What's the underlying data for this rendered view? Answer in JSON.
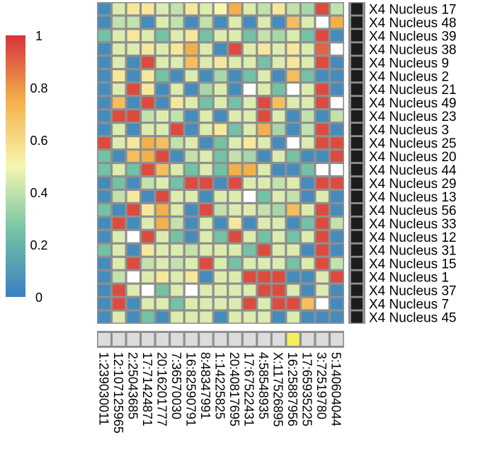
{
  "chart_data": {
    "type": "heatmap",
    "title": "",
    "colorbar": {
      "min": 0,
      "max": 1,
      "ticks": [
        {
          "value": 1,
          "label": "1"
        },
        {
          "value": 0.8,
          "label": "0.8"
        },
        {
          "value": 0.6,
          "label": "0.6"
        },
        {
          "value": 0.4,
          "label": "0.4"
        },
        {
          "value": 0.2,
          "label": "0.2"
        },
        {
          "value": 0,
          "label": "0"
        }
      ],
      "colors": [
        "#3a7fc2",
        "#73c2a5",
        "#f6f6b0",
        "#f3b04a",
        "#d7323c"
      ]
    },
    "rows": [
      "X4 Nucleus 17",
      "X4 Nucleus 48",
      "X4 Nucleus 39",
      "X4 Nucleus 38",
      "X4 Nucleus 9",
      "X4 Nucleus 2",
      "X4 Nucleus 21",
      "X4 Nucleus 49",
      "X4 Nucleus 23",
      "X4 Nucleus 3",
      "X4 Nucleus 25",
      "X4 Nucleus 20",
      "X4 Nucleus 44",
      "X4 Nucleus 29",
      "X4 Nucleus 13",
      "X4 Nucleus 56",
      "X4 Nucleus 33",
      "X4 Nucleus 12",
      "X4 Nucleus 31",
      "X4 Nucleus 15",
      "X4 Nucleus 1",
      "X4 Nucleus 37",
      "X4 Nucleus 7",
      "X4 Nucleus 45"
    ],
    "columns": [
      "1:239030011",
      "12:107125965",
      "2:25043685",
      "17:71424871",
      "20:16201777",
      "7:36570030",
      "16:82590791",
      "8:48347991",
      "1:14225825",
      "20:40817695",
      "17:67522431",
      "4:58548935",
      "X:117526895",
      "16:25887956",
      "17:65935225",
      "3:72519780",
      "5:140604044"
    ],
    "values": [
      [
        0.05,
        0.45,
        0.55,
        0.55,
        0.45,
        0.4,
        0.55,
        0.45,
        0.5,
        0.75,
        0.45,
        0.4,
        0.55,
        0.4,
        0.35,
        0.95,
        0.4
      ],
      [
        0.05,
        0.4,
        0.4,
        0.05,
        0.45,
        0.4,
        0.05,
        0.4,
        0.05,
        0.45,
        0.05,
        0.45,
        0.05,
        0.7,
        0.45,
        1.01,
        0.75
      ],
      [
        0.25,
        0.45,
        0.55,
        0.45,
        0.25,
        0.45,
        0.55,
        0.25,
        0.45,
        0.45,
        0.25,
        0.4,
        0.35,
        0.45,
        0.25,
        0.95,
        0.05
      ],
      [
        0.05,
        0.45,
        0.45,
        0.55,
        0.45,
        0.55,
        0.75,
        0.45,
        0.05,
        0.95,
        0.45,
        0.55,
        0.45,
        0.55,
        0.45,
        0.9,
        1.01
      ],
      [
        0.05,
        0.45,
        0.05,
        0.95,
        0.45,
        0.45,
        0.7,
        0.45,
        0.55,
        0.45,
        0.45,
        0.25,
        0.45,
        0.55,
        0.45,
        0.95,
        0.05
      ],
      [
        0.05,
        0.55,
        0.05,
        0.55,
        0.25,
        0.05,
        0.45,
        0.05,
        0.35,
        0.05,
        0.25,
        0.45,
        0.05,
        0.7,
        0.25,
        0.05,
        0.05
      ],
      [
        0.05,
        0.45,
        0.95,
        0.55,
        0.05,
        0.45,
        0.05,
        0.35,
        0.45,
        0.05,
        1.01,
        0.45,
        0.25,
        1.01,
        0.45,
        0.95,
        0.05
      ],
      [
        0.05,
        0.7,
        0.05,
        0.95,
        0.05,
        0.55,
        0.45,
        0.25,
        0.45,
        0.25,
        0.45,
        0.95,
        0.7,
        0.45,
        0.45,
        0.95,
        1.01
      ],
      [
        0.05,
        0.95,
        0.95,
        0.4,
        0.45,
        0.4,
        0.05,
        0.45,
        0.05,
        0.45,
        0.45,
        0.95,
        0.45,
        0.05,
        0.4,
        0.05,
        0.4
      ],
      [
        0.05,
        0.45,
        0.05,
        0.45,
        0.45,
        0.95,
        0.05,
        0.45,
        0.55,
        0.25,
        0.45,
        0.75,
        0.35,
        0.05,
        0.4,
        0.95,
        0.05
      ],
      [
        0.95,
        0.45,
        0.55,
        0.75,
        0.7,
        0.4,
        0.45,
        0.05,
        0.25,
        0.45,
        0.55,
        0.45,
        0.05,
        1.01,
        0.45,
        0.95,
        0.95
      ],
      [
        0.25,
        0.05,
        0.7,
        0.75,
        0.95,
        0.05,
        0.4,
        0.45,
        0.25,
        0.4,
        0.35,
        0.05,
        0.45,
        0.25,
        0.05,
        0.05,
        0.95
      ],
      [
        0.25,
        0.45,
        0.25,
        0.95,
        0.7,
        0.45,
        0.25,
        0.45,
        0.25,
        0.75,
        0.75,
        0.45,
        0.05,
        0.05,
        0.25,
        1.01,
        1.01
      ],
      [
        0.05,
        0.25,
        0.05,
        0.4,
        0.45,
        0.25,
        0.95,
        0.95,
        0.05,
        0.95,
        0.45,
        0.45,
        0.4,
        0.45,
        0.05,
        0.95,
        0.95
      ],
      [
        0.05,
        0.4,
        0.55,
        0.05,
        0.95,
        0.45,
        0.45,
        0.05,
        0.45,
        0.45,
        1.01,
        0.25,
        0.45,
        0.4,
        0.05,
        0.45,
        0.05
      ],
      [
        0.25,
        0.05,
        0.95,
        0.55,
        0.75,
        0.45,
        0.05,
        0.95,
        0.4,
        0.45,
        0.45,
        0.4,
        0.35,
        0.7,
        0.45,
        0.95,
        0.05
      ],
      [
        0.05,
        0.95,
        0.05,
        0.45,
        0.75,
        0.4,
        0.05,
        0.45,
        0.05,
        0.55,
        0.05,
        0.45,
        0.45,
        0.05,
        0.25,
        0.95,
        0.4
      ],
      [
        0.05,
        0.45,
        1.01,
        0.95,
        0.45,
        0.25,
        0.05,
        0.45,
        0.25,
        0.95,
        0.45,
        0.25,
        0.45,
        0.25,
        0.45,
        0.95,
        0.05
      ],
      [
        0.25,
        0.45,
        0.05,
        0.55,
        0.45,
        0.45,
        0.4,
        0.45,
        0.45,
        0.45,
        0.25,
        0.95,
        0.45,
        0.45,
        0.05,
        0.95,
        0.05
      ],
      [
        0.05,
        0.45,
        0.95,
        0.4,
        0.45,
        0.4,
        0.45,
        0.95,
        0.45,
        0.25,
        0.45,
        0.45,
        0.45,
        0.25,
        0.45,
        0.95,
        0.4
      ],
      [
        0.05,
        0.4,
        1.01,
        0.45,
        0.55,
        0.45,
        0.55,
        0.05,
        0.45,
        0.45,
        0.95,
        0.95,
        0.95,
        0.05,
        0.05,
        0.45,
        0.95
      ],
      [
        0.05,
        0.95,
        0.45,
        1.01,
        0.25,
        0.45,
        1.01,
        0.45,
        0.45,
        0.45,
        0.45,
        0.95,
        0.95,
        0.45,
        0.05,
        0.45,
        0.05
      ],
      [
        0.05,
        0.95,
        0.05,
        0.45,
        0.45,
        0.25,
        0.45,
        0.45,
        0.45,
        0.45,
        0.95,
        0.45,
        0.95,
        0.95,
        0.7,
        1.01,
        0.05
      ],
      [
        0.05,
        0.45,
        0.05,
        0.25,
        0.05,
        0.45,
        0.45,
        0.45,
        0.05,
        0.45,
        0.45,
        0.45,
        0.05,
        0.45,
        0.05,
        0.05,
        0.05
      ]
    ],
    "blank_value_note": "values of 1.01 denote empty (white) cells",
    "row_annotation": {
      "color": "#1c1c1c"
    },
    "column_annotation": {
      "default_color": "#dcdcdc",
      "highlight_color": "#f4ef5c",
      "highlight_column_index": 13
    }
  }
}
